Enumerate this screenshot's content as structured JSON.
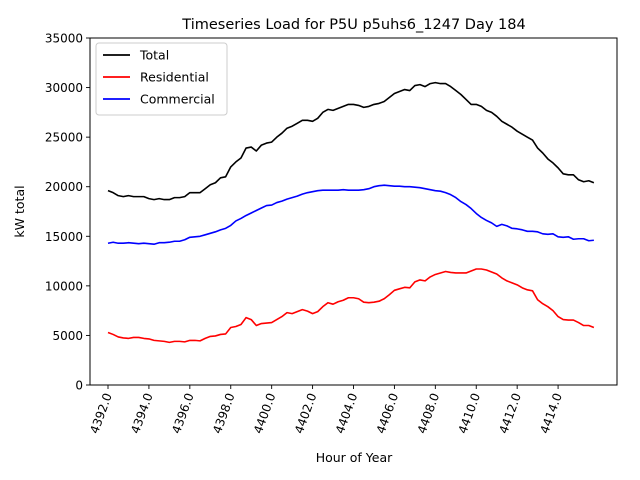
{
  "chart_data": {
    "type": "line",
    "title": "Timeseries Load for P5U p5uhs6_1247  Day 184",
    "xlabel": "Hour of Year",
    "ylabel": "kW total",
    "xlim": [
      4391.12,
      4416.88
    ],
    "ylim": [
      0,
      35000
    ],
    "x_ticks": [
      4392,
      4394,
      4396,
      4398,
      4400,
      4402,
      4404,
      4406,
      4408,
      4410,
      4412,
      4414
    ],
    "x_tick_labels": [
      "4392.0",
      "4394.0",
      "4396.0",
      "4398.0",
      "4400.0",
      "4402.0",
      "4404.0",
      "4406.0",
      "4408.0",
      "4410.0",
      "4412.0",
      "4414.0"
    ],
    "y_ticks": [
      0,
      5000,
      10000,
      15000,
      20000,
      25000,
      30000,
      35000
    ],
    "y_tick_labels": [
      "0",
      "5000",
      "10000",
      "15000",
      "20000",
      "25000",
      "30000",
      "35000"
    ],
    "x_start": 4392,
    "x_step": 0.25,
    "grid": false,
    "legend_position": "top-left",
    "series": [
      {
        "name": "Total",
        "color": "#000000",
        "values": [
          19600,
          19400,
          19100,
          19000,
          19100,
          19000,
          19000,
          19000,
          18800,
          18700,
          18800,
          18700,
          18700,
          18900,
          18900,
          19000,
          19400,
          19400,
          19400,
          19800,
          20200,
          20400,
          20900,
          21000,
          22000,
          22500,
          22900,
          23900,
          24000,
          23600,
          24200,
          24400,
          24500,
          25000,
          25400,
          25900,
          26100,
          26400,
          26700,
          26700,
          26600,
          26900,
          27500,
          27800,
          27700,
          27900,
          28100,
          28300,
          28300,
          28200,
          28000,
          28100,
          28300,
          28400,
          28600,
          29000,
          29400,
          29600,
          29800,
          29700,
          30200,
          30300,
          30100,
          30400,
          30500,
          30400,
          30400,
          30100,
          29700,
          29300,
          28800,
          28300,
          28300,
          28100,
          27700,
          27500,
          27100,
          26600,
          26300,
          26000,
          25600,
          25300,
          25000,
          24700,
          23900,
          23400,
          22800,
          22400,
          21900,
          21300,
          21200,
          21200,
          20700,
          20500,
          20600,
          20400
        ]
      },
      {
        "name": "Residential",
        "color": "#ff0000",
        "values": [
          5300,
          5100,
          4850,
          4750,
          4700,
          4800,
          4800,
          4700,
          4650,
          4500,
          4450,
          4400,
          4300,
          4400,
          4400,
          4350,
          4500,
          4500,
          4450,
          4700,
          4900,
          4950,
          5100,
          5150,
          5800,
          5900,
          6100,
          6800,
          6600,
          6000,
          6200,
          6250,
          6300,
          6600,
          6900,
          7300,
          7200,
          7400,
          7600,
          7450,
          7200,
          7400,
          7900,
          8300,
          8150,
          8400,
          8550,
          8800,
          8800,
          8700,
          8350,
          8300,
          8350,
          8450,
          8700,
          9100,
          9550,
          9700,
          9850,
          9800,
          10400,
          10600,
          10500,
          10900,
          11150,
          11300,
          11450,
          11350,
          11300,
          11300,
          11300,
          11500,
          11700,
          11700,
          11600,
          11400,
          11200,
          10800,
          10500,
          10300,
          10100,
          9800,
          9600,
          9500,
          8600,
          8200,
          7900,
          7500,
          6900,
          6600,
          6550,
          6550,
          6300,
          6000,
          6000,
          5800
        ]
      },
      {
        "name": "Commercial",
        "color": "#0000ff",
        "values": [
          14300,
          14400,
          14300,
          14300,
          14350,
          14300,
          14250,
          14300,
          14250,
          14200,
          14350,
          14350,
          14400,
          14500,
          14500,
          14650,
          14900,
          14950,
          15000,
          15150,
          15300,
          15450,
          15650,
          15800,
          16100,
          16550,
          16800,
          17100,
          17350,
          17600,
          17850,
          18100,
          18150,
          18400,
          18550,
          18750,
          18900,
          19050,
          19250,
          19400,
          19500,
          19600,
          19650,
          19650,
          19650,
          19650,
          19700,
          19650,
          19650,
          19650,
          19700,
          19800,
          20000,
          20100,
          20150,
          20100,
          20050,
          20050,
          20000,
          20000,
          19950,
          19900,
          19800,
          19700,
          19600,
          19550,
          19400,
          19200,
          18900,
          18500,
          18200,
          17800,
          17300,
          16900,
          16600,
          16350,
          16000,
          16200,
          16050,
          15800,
          15750,
          15650,
          15500,
          15500,
          15450,
          15250,
          15200,
          15250,
          14950,
          14900,
          14950,
          14700,
          14750,
          14750,
          14550,
          14600
        ]
      }
    ]
  }
}
